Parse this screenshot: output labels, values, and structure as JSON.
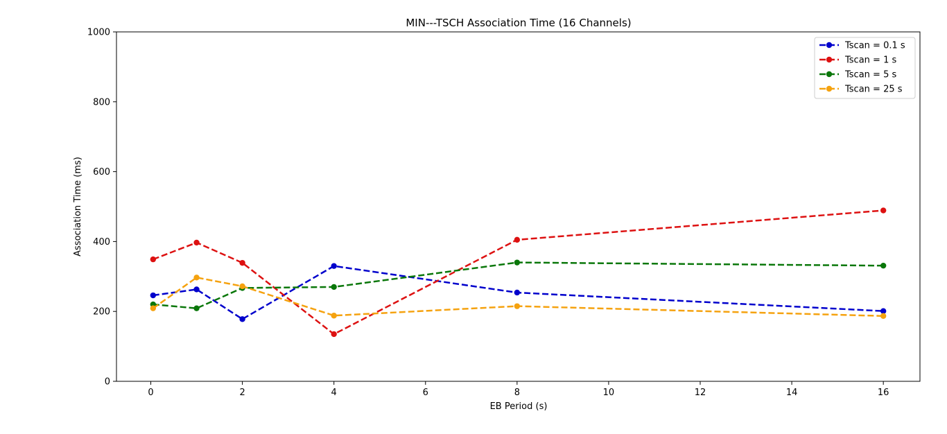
{
  "chart_data": {
    "type": "line",
    "title": "MIN---TSCH Association Time (16 Channels)",
    "xlabel": "EB Period (s)",
    "ylabel": "Association Time (ms)",
    "xlim": [
      -0.75,
      16.8
    ],
    "ylim": [
      0,
      1000
    ],
    "xticks": [
      0,
      2,
      4,
      6,
      8,
      10,
      12,
      14,
      16
    ],
    "yticks": [
      0,
      200,
      400,
      600,
      800,
      1000
    ],
    "x": [
      0.05,
      1,
      2,
      4,
      8,
      16
    ],
    "grid": false,
    "legend_position": "top-right",
    "line_style": "dashed",
    "marker": "circle",
    "series": [
      {
        "name": "Tscan = 0.1 s",
        "color": "#0000cc",
        "values": [
          246,
          263,
          178,
          330,
          254,
          201
        ]
      },
      {
        "name": "Tscan = 1 s",
        "color": "#dd1111",
        "values": [
          349,
          397,
          339,
          135,
          405,
          489
        ]
      },
      {
        "name": "Tscan = 5 s",
        "color": "#0a770a",
        "values": [
          220,
          209,
          267,
          270,
          340,
          331
        ]
      },
      {
        "name": "Tscan = 25 s",
        "color": "#f5a20f",
        "values": [
          209,
          297,
          272,
          188,
          215,
          187
        ]
      }
    ]
  }
}
